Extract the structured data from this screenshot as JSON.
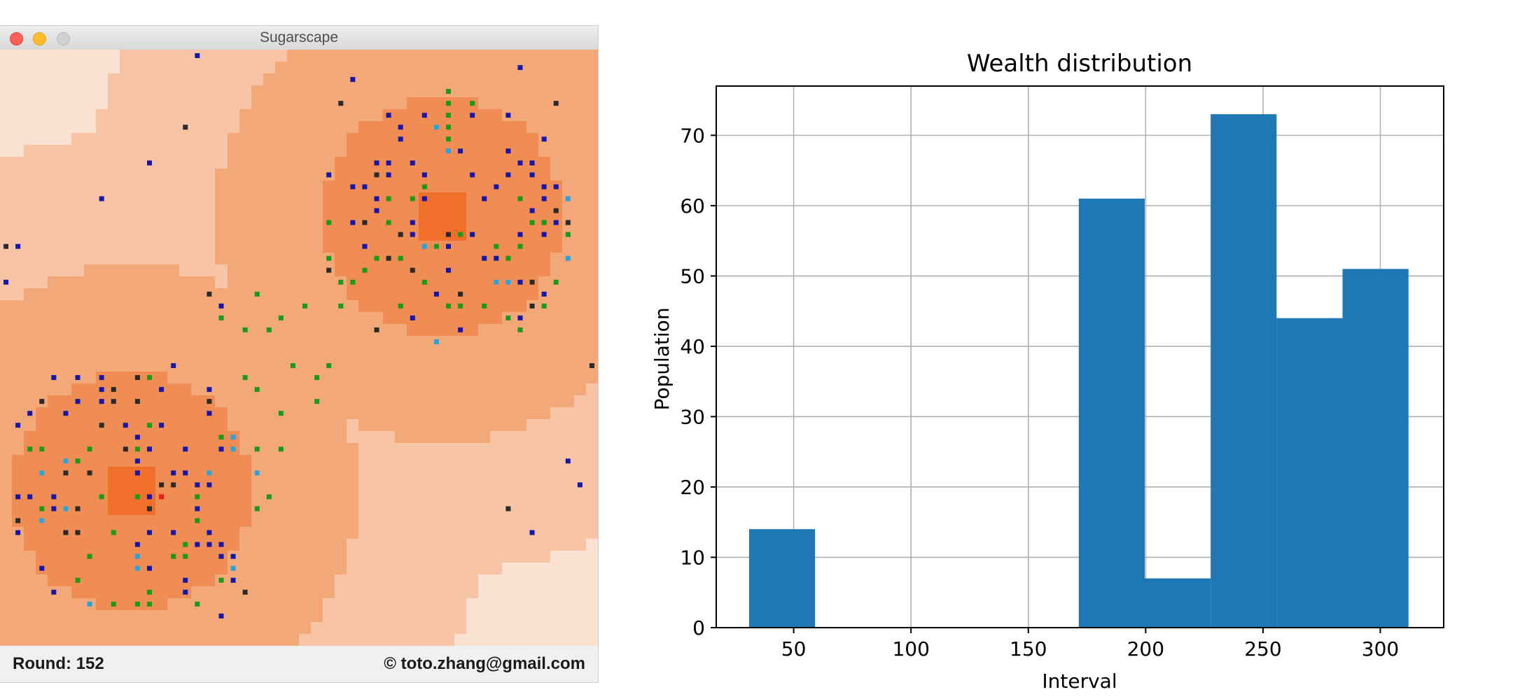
{
  "window": {
    "title": "Sugarscape",
    "round_text": "Round: 152",
    "copyright_text": "© toto.zhang@gmail.com",
    "controls": [
      "close-icon",
      "minimize-icon",
      "zoom-icon"
    ]
  },
  "sugarscape_colors": {
    "level_1": "#fae1d2",
    "level_2": "#f7c4a5",
    "level_3": "#f2a878",
    "level_4": "#f08d55",
    "level_5": "#ef6f2b",
    "agent_blue": "#1616a8",
    "agent_green": "#1a9a1a",
    "agent_cyan": "#29a3d9",
    "agent_dark": "#2a2a2a",
    "agent_red": "#e22020"
  },
  "chart_data": {
    "type": "bar",
    "title": "Wealth distribution",
    "xlabel": "Interval",
    "ylabel": "Population",
    "xlim": [
      17,
      327
    ],
    "ylim": [
      0,
      77
    ],
    "xticks": [
      50,
      100,
      150,
      200,
      250,
      300
    ],
    "yticks": [
      0,
      10,
      20,
      30,
      40,
      50,
      60,
      70
    ],
    "bin_edges": [
      31,
      59.1,
      87.2,
      115.3,
      143.4,
      171.5,
      199.6,
      227.7,
      255.8,
      283.9,
      312
    ],
    "values": [
      14,
      0,
      0,
      0,
      0,
      61,
      7,
      73,
      44,
      51
    ],
    "grid": true,
    "bar_color": "#1f77b4"
  }
}
